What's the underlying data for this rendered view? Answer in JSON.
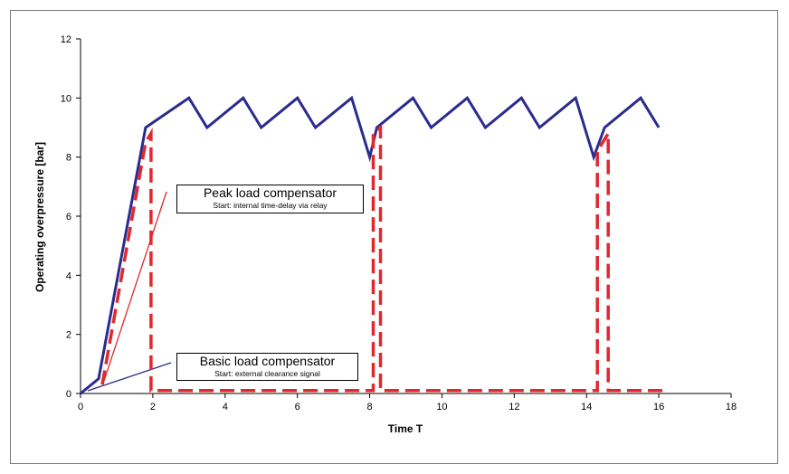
{
  "colors": {
    "basic": "#2b2b8f",
    "peak": "#e0282e",
    "axis": "#000000",
    "frame": "#7a7a7a"
  },
  "chart_data": {
    "type": "line",
    "title": "",
    "xlabel": "Time T",
    "ylabel": "Operating overpressure [bar]",
    "xlim": [
      0,
      18
    ],
    "ylim": [
      0,
      12
    ],
    "xticks": [
      0,
      2,
      4,
      6,
      8,
      10,
      12,
      14,
      16,
      18
    ],
    "yticks": [
      0,
      2,
      4,
      6,
      8,
      10,
      12
    ],
    "grid": false,
    "series": [
      {
        "style": "solid",
        "color": "#2b2b8f",
        "points": [
          [
            0,
            0
          ],
          [
            0.5,
            0.5
          ],
          [
            1.8,
            9
          ],
          [
            3,
            10
          ],
          [
            3.5,
            9
          ],
          [
            4.5,
            10
          ],
          [
            5,
            9
          ],
          [
            6,
            10
          ],
          [
            6.5,
            9
          ],
          [
            7.5,
            10
          ],
          [
            8,
            8
          ],
          [
            8.2,
            9
          ],
          [
            9.2,
            10
          ],
          [
            9.7,
            9
          ],
          [
            10.7,
            10
          ],
          [
            11.2,
            9
          ],
          [
            12.2,
            10
          ],
          [
            12.7,
            9
          ],
          [
            13.7,
            10
          ],
          [
            14.2,
            8
          ],
          [
            14.5,
            9
          ],
          [
            15.5,
            10
          ],
          [
            16,
            9
          ]
        ]
      },
      {
        "style": "dashed",
        "color": "#e0282e",
        "points": [
          [
            0.6,
            0.3
          ],
          [
            1.8,
            8.5
          ],
          [
            1.95,
            8.8
          ],
          [
            1.95,
            0.1
          ],
          [
            8.1,
            0.1
          ],
          [
            8.1,
            8.8
          ],
          [
            8.3,
            9
          ],
          [
            8.3,
            0.1
          ],
          [
            14.3,
            0.1
          ],
          [
            14.3,
            8.2
          ],
          [
            14.6,
            8.8
          ],
          [
            14.6,
            0.1
          ],
          [
            16.2,
            0.1
          ]
        ]
      }
    ],
    "annotations": [
      {
        "title": "Peak load compensator",
        "subtitle": "Start: internal time-delay via relay",
        "color": "#e0282e"
      },
      {
        "title": "Basic load compensator",
        "subtitle": "Start: external clearance signal",
        "color": "#2b2b8f"
      }
    ]
  }
}
